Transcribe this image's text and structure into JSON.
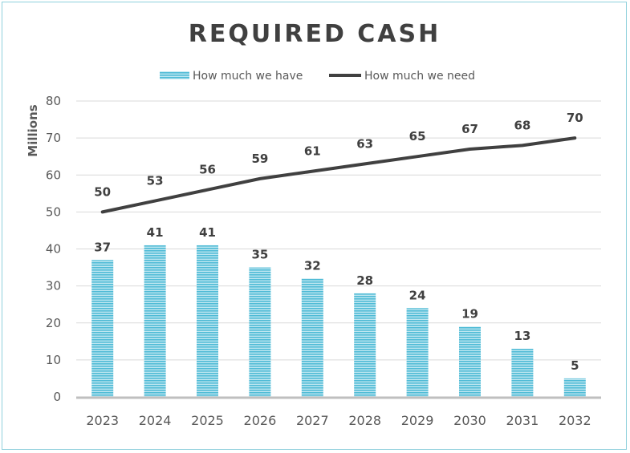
{
  "chart_data": {
    "type": "bar",
    "title": "REQUIRED CASH",
    "ylabel": "Millions",
    "xlabel": "",
    "ylim": [
      0,
      80
    ],
    "yticks": [
      0,
      10,
      20,
      30,
      40,
      50,
      60,
      70,
      80
    ],
    "grid": true,
    "legend_position": "top",
    "categories": [
      "2023",
      "2024",
      "2025",
      "2026",
      "2027",
      "2028",
      "2029",
      "2030",
      "2031",
      "2032"
    ],
    "series": [
      {
        "name": "How much we have",
        "kind": "bar",
        "color": "#5bc0d8",
        "values": [
          37,
          41,
          41,
          35,
          32,
          28,
          24,
          19,
          13,
          5
        ],
        "labels": [
          "37",
          "41",
          "41",
          "35",
          "32",
          "28",
          "24",
          "19",
          "13",
          "5"
        ]
      },
      {
        "name": "How much we need",
        "kind": "line",
        "color": "#404040",
        "values": [
          50,
          53,
          56,
          59,
          61,
          63,
          65,
          67,
          68,
          70
        ],
        "labels": [
          "50",
          "53",
          "56",
          "59",
          "61",
          "63",
          "65",
          "67",
          "68",
          "70"
        ]
      }
    ]
  }
}
